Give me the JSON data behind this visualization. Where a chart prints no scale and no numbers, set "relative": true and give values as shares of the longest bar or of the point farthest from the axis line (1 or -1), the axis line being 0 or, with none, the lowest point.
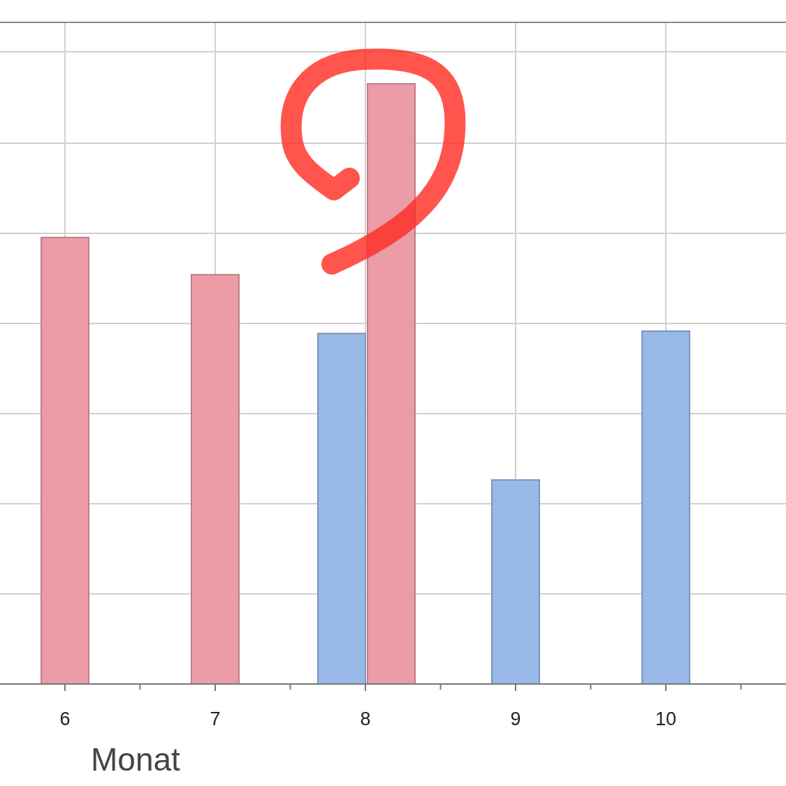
{
  "chart_data": {
    "type": "bar",
    "relative": true,
    "xlabel": "Monat",
    "categories": [
      "6",
      "7",
      "8",
      "9",
      "10"
    ],
    "grid": true,
    "series": [
      {
        "color": "#98b9e8",
        "values": [
          null,
          null,
          0.584,
          0.34,
          0.588
        ]
      },
      {
        "color": "#eb9ca7",
        "values": [
          0.744,
          0.682,
          1,
          null,
          null
        ]
      }
    ]
  }
}
